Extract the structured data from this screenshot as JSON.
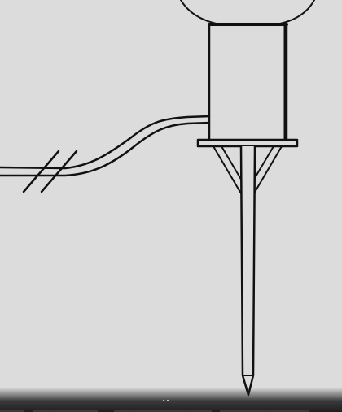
{
  "figure": {
    "parts": [
      "globe-lamp-head",
      "lamp-housing",
      "collar-plate",
      "ground-stake",
      "power-cable",
      "cable-break-mark"
    ],
    "colors": {
      "background": "#dcdcdc",
      "stroke": "#111111",
      "fill": "#dcdcdc"
    }
  },
  "viewer": {
    "page_indicator_count": 2,
    "bar_color": "#1e1e1e"
  }
}
